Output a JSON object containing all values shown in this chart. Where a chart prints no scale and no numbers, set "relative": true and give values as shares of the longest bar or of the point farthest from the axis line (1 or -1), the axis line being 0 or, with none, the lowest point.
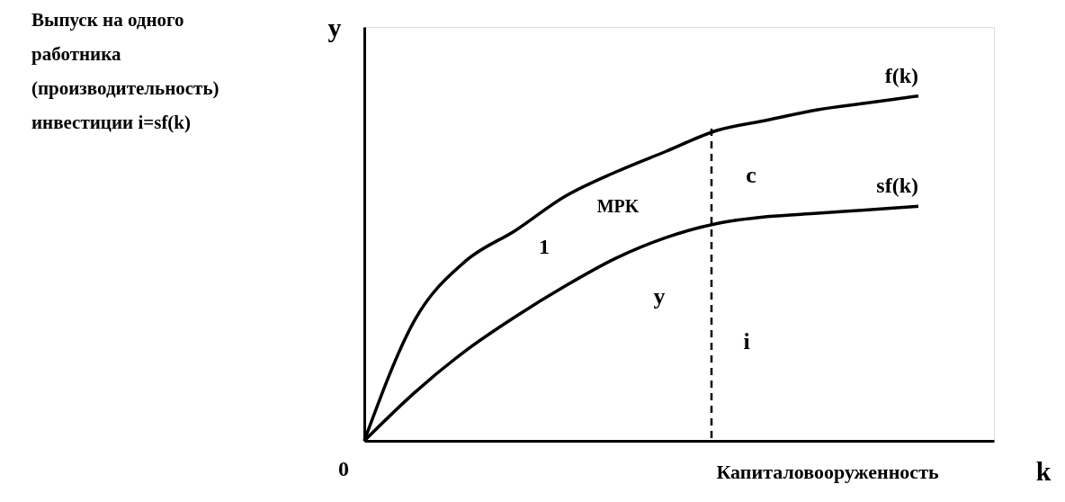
{
  "chart_data": {
    "type": "line",
    "relative": true,
    "xlabel": "Капиталовооруженность",
    "categories": [
      null,
      null,
      null,
      null,
      null,
      null,
      null,
      null,
      null,
      null,
      null,
      null
    ],
    "series": [
      {
        "name": "f(k)",
        "color": "#000000",
        "values": [
          0,
          0.35,
          0.52,
          0.61,
          0.71,
          0.78,
          0.84,
          0.9,
          0.93,
          0.96,
          0.98,
          1
        ]
      },
      {
        "name": "sf(k)",
        "color": "#000000",
        "values": [
          0,
          0.14,
          0.26,
          0.36,
          0.45,
          0.53,
          0.59,
          0.63,
          0.65,
          0.66,
          0.67,
          0.68
        ]
      }
    ],
    "annotations": [
      "y",
      "k",
      "0",
      "MPK",
      "1",
      "c",
      "y",
      "i",
      "Выпуск на одного\nработника\n(производительность)\nинвестиции i=sf(k)"
    ]
  }
}
